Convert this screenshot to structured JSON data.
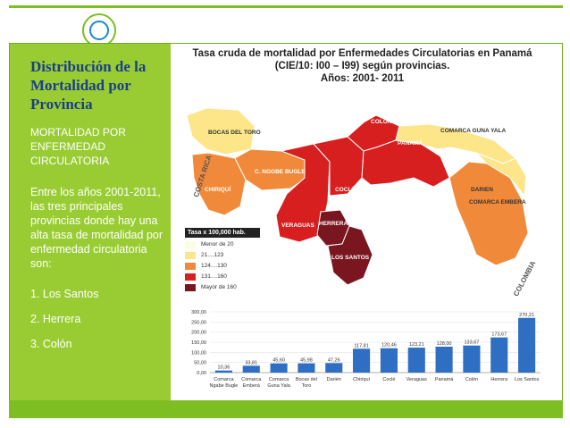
{
  "slide": {
    "title": "Distribución de la Mortalidad por Provincia",
    "subtitle": "MORTALIDAD POR ENFERMEDAD CIRCULATORIA",
    "body": "Entre los años 2001-2011, las tres principales provincias donde hay una alta tasa de mortalidad por enfermedad circulatoria son:",
    "list": [
      "1. Los Santos",
      "2. Herrera",
      "3. Colón"
    ],
    "colors": {
      "accent": "#99cc33",
      "title": "#1b3f8a",
      "bar": "#2e6fc4"
    }
  },
  "figure": {
    "title_line1": "Tasa  cruda de mortalidad por Enfermedades Circulatorias en Panamá",
    "title_line2": "(CIE/10: I00 – I99) según provincias.",
    "title_line3": "Años: 2001- 2011",
    "map_labels": {
      "bocas": "BOCAS DEL TORO",
      "colon": "COLÓN",
      "guna": "COMARCA GUNA YALA",
      "panama": "PANAMÁ",
      "chiriqui": "CHIRIQUÍ",
      "ngobe": "C. NGOBE BUGLE",
      "cocle": "COCLÉ",
      "darien": "DARIEN",
      "embera": "COMARCA EMBERA",
      "veraguas": "VERAGUAS",
      "herrera": "HERRERA",
      "santos": "LOS SANTOS",
      "costa_rica": "COSTA RICA",
      "colombia": "COLOMBIA"
    },
    "legend": {
      "title": "Tasa x 100,000 hab.",
      "items": [
        {
          "label": "Menor de 20",
          "color": "#fffbe0"
        },
        {
          "label": "21....123",
          "color": "#fde68a"
        },
        {
          "label": "124....130",
          "color": "#f08a3a"
        },
        {
          "label": "131....160",
          "color": "#d81f1f"
        },
        {
          "label": "Mayor de 160",
          "color": "#7a1620"
        }
      ]
    }
  },
  "chart_data": {
    "type": "bar",
    "categories": [
      "Comarca Ngabe Bugle",
      "Comarca Emberá",
      "Comarca Guna Yala",
      "Bocas del Toro",
      "Darién",
      "Chiriquí",
      "Coclé",
      "Veraguas",
      "Panamá",
      "Colón",
      "Herrera",
      "Los Santos"
    ],
    "category_lines": [
      [
        "Comarca",
        "Ngabe Bugle"
      ],
      [
        "Comarca",
        "Emberá"
      ],
      [
        "Comarca",
        "Guna Yala"
      ],
      [
        "Bocas del",
        "Toro"
      ],
      [
        "Darién"
      ],
      [
        "Chiriquí"
      ],
      [
        "Coclé"
      ],
      [
        "Veraguas"
      ],
      [
        "Panamá"
      ],
      [
        "Colón"
      ],
      [
        "Herrera"
      ],
      [
        "Los Santos"
      ]
    ],
    "values": [
      10.36,
      33.81,
      45.6,
      45.98,
      47.26,
      117.81,
      120.46,
      123.21,
      128.0,
      133.67,
      173.67,
      270.21
    ],
    "value_labels": [
      "10,36",
      "33,81",
      "45,60",
      "45,98",
      "47,26",
      "117,81",
      "120,46",
      "123,21",
      "128,00",
      "133,67",
      "173,67",
      "270,21"
    ],
    "ylim": [
      0,
      300
    ],
    "yticks": [
      "0,00",
      "50,00",
      "100,00",
      "150,00",
      "200,00",
      "250,00",
      "300,00"
    ],
    "color": "#2e6fc4"
  }
}
